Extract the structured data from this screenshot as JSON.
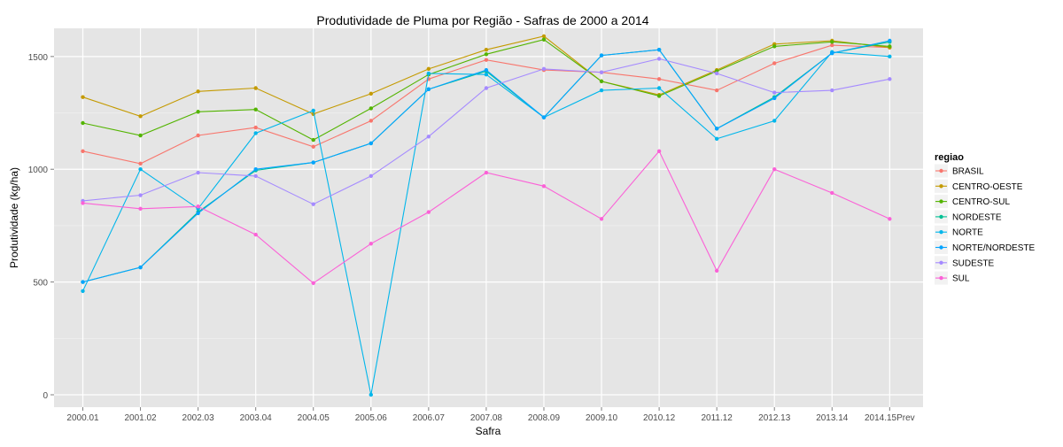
{
  "chart_data": {
    "type": "line",
    "title": "Produtividade de Pluma por Região - Safras de 2000 a 2014",
    "xlabel": "Safra",
    "ylabel": "Produtividade (kg/ha)",
    "categories": [
      "2000.01",
      "2001.02",
      "2002.03",
      "2003.04",
      "2004.05",
      "2005.06",
      "2006.07",
      "2007.08",
      "2008.09",
      "2009.10",
      "2010.12",
      "2011.12",
      "2012.13",
      "2013.14",
      "2014.15Prev"
    ],
    "y_ticks": [
      0,
      500,
      1000,
      1500
    ],
    "ylim": [
      -55,
      1625
    ],
    "grid": true,
    "legend": {
      "title": "regiao",
      "position": "right"
    },
    "series": [
      {
        "name": "BRASIL",
        "color": "#F8766D",
        "values": [
          1080,
          1025,
          1150,
          1185,
          1100,
          1215,
          1400,
          1485,
          1440,
          1430,
          1400,
          1350,
          1470,
          1550,
          1540
        ]
      },
      {
        "name": "CENTRO-OESTE",
        "color": "#C49A00",
        "values": [
          1320,
          1235,
          1345,
          1360,
          1245,
          1335,
          1445,
          1530,
          1590,
          1390,
          1330,
          1440,
          1555,
          1570,
          1540
        ]
      },
      {
        "name": "CENTRO-SUL",
        "color": "#53B400",
        "values": [
          1205,
          1150,
          1255,
          1265,
          1130,
          1270,
          1420,
          1510,
          1575,
          1390,
          1325,
          1435,
          1545,
          1565,
          1545
        ]
      },
      {
        "name": "NORDESTE",
        "color": "#00C094",
        "values": [
          500,
          565,
          810,
          995,
          1030,
          1115,
          1355,
          1435,
          1230,
          1505,
          1530,
          1180,
          1320,
          1515,
          1565
        ]
      },
      {
        "name": "NORTE",
        "color": "#00B6EB",
        "values": [
          460,
          1000,
          825,
          1160,
          1260,
          0,
          1425,
          1420,
          1230,
          1350,
          1360,
          1135,
          1215,
          1520,
          1500
        ]
      },
      {
        "name": "NORTE/NORDESTE",
        "color": "#06A4FF",
        "values": [
          500,
          565,
          805,
          1000,
          1030,
          1115,
          1355,
          1440,
          1230,
          1505,
          1530,
          1180,
          1315,
          1515,
          1570
        ]
      },
      {
        "name": "SUDESTE",
        "color": "#A58AFF",
        "values": [
          860,
          885,
          985,
          970,
          845,
          970,
          1145,
          1360,
          1445,
          1430,
          1490,
          1425,
          1340,
          1350,
          1400
        ]
      },
      {
        "name": "SUL",
        "color": "#FB61D7",
        "values": [
          850,
          825,
          835,
          710,
          495,
          670,
          810,
          985,
          925,
          780,
          1080,
          550,
          1000,
          895,
          780
        ]
      }
    ]
  }
}
